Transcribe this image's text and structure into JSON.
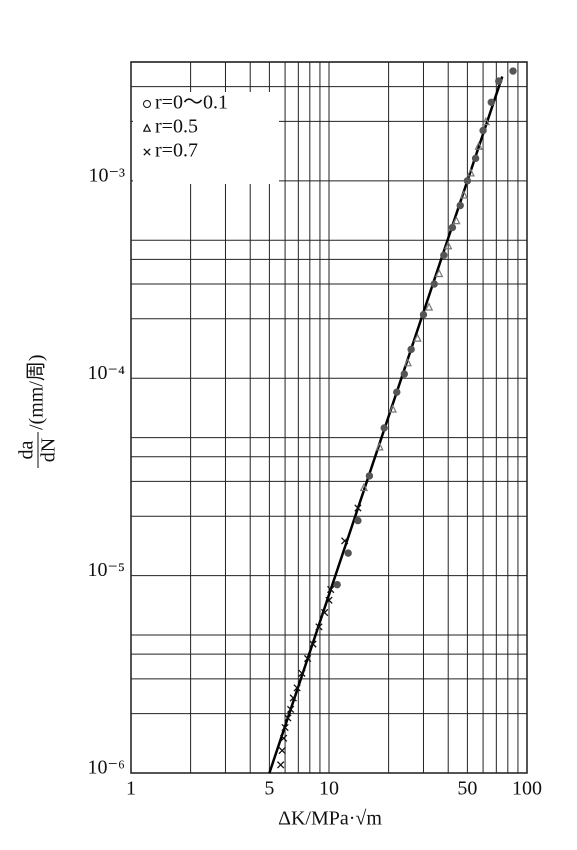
{
  "chart_data": {
    "type": "scatter",
    "xlabel": "ΔK/MPa·√m",
    "ylabel": {
      "numerator": "da",
      "denominator": "dN",
      "unit": "/(mm/周)"
    },
    "xscale": "log",
    "yscale": "log",
    "grid": true,
    "legend": "upper left",
    "xlim": [
      1,
      100
    ],
    "ylim": [
      1e-06,
      0.004
    ],
    "xticks": [
      1,
      5,
      10,
      50,
      100
    ],
    "xminor": [
      2,
      3,
      4,
      6,
      7,
      8,
      9,
      20,
      30,
      40,
      60,
      70,
      80,
      90
    ],
    "yticks": [
      {
        "value": 1e-06,
        "label": "10⁻⁶"
      },
      {
        "value": 1e-05,
        "label": "10⁻⁵"
      },
      {
        "value": 0.0001,
        "label": "10⁻⁴"
      },
      {
        "value": 0.001,
        "label": "10⁻³"
      }
    ],
    "yminor": [
      2e-06,
      3e-06,
      4e-06,
      5e-06,
      2e-05,
      3e-05,
      4e-05,
      5e-05,
      0.0002,
      0.0003,
      0.0004,
      0.0005,
      0.002,
      0.003
    ],
    "series": [
      {
        "name": "r=0～0.1",
        "marker": "o",
        "color": "#555555",
        "x": [
          11,
          12.5,
          14,
          16,
          19,
          22,
          24,
          26,
          30,
          34,
          38,
          42,
          46,
          50,
          55,
          60,
          66,
          72,
          85
        ],
        "values": [
          9e-06,
          1.3e-05,
          1.9e-05,
          3.2e-05,
          5.6e-05,
          8.5e-05,
          0.000105,
          0.00014,
          0.00021,
          0.0003,
          0.00042,
          0.00058,
          0.00075,
          0.001,
          0.0013,
          0.0018,
          0.0025,
          0.0032,
          0.0036
        ]
      },
      {
        "name": "r=0.5",
        "marker": "^",
        "color": "#777777",
        "x": [
          15,
          18,
          21,
          25,
          28,
          32,
          36,
          40,
          44,
          48,
          52,
          57,
          62
        ],
        "values": [
          2.8e-05,
          4.5e-05,
          7e-05,
          0.00012,
          0.00016,
          0.00023,
          0.00034,
          0.00047,
          0.00063,
          0.00085,
          0.0011,
          0.0015,
          0.002
        ]
      },
      {
        "name": "r=0.7",
        "marker": "x",
        "color": "#111111",
        "x": [
          5.7,
          5.8,
          5.9,
          6.0,
          6.2,
          6.4,
          6.6,
          6.9,
          7.3,
          7.8,
          8.3,
          8.9,
          9.5,
          10,
          10.2,
          12,
          14
        ],
        "values": [
          1.1e-06,
          1.3e-06,
          1.5e-06,
          1.7e-06,
          1.9e-06,
          2.1e-06,
          2.4e-06,
          2.7e-06,
          3.2e-06,
          3.8e-06,
          4.5e-06,
          5.5e-06,
          6.5e-06,
          7.5e-06,
          8.5e-06,
          1.5e-05,
          2.2e-05
        ]
      }
    ],
    "fit_line": {
      "color": "#000000",
      "x": [
        5,
        75
      ],
      "values": [
        1e-06,
        0.003375
      ]
    }
  }
}
